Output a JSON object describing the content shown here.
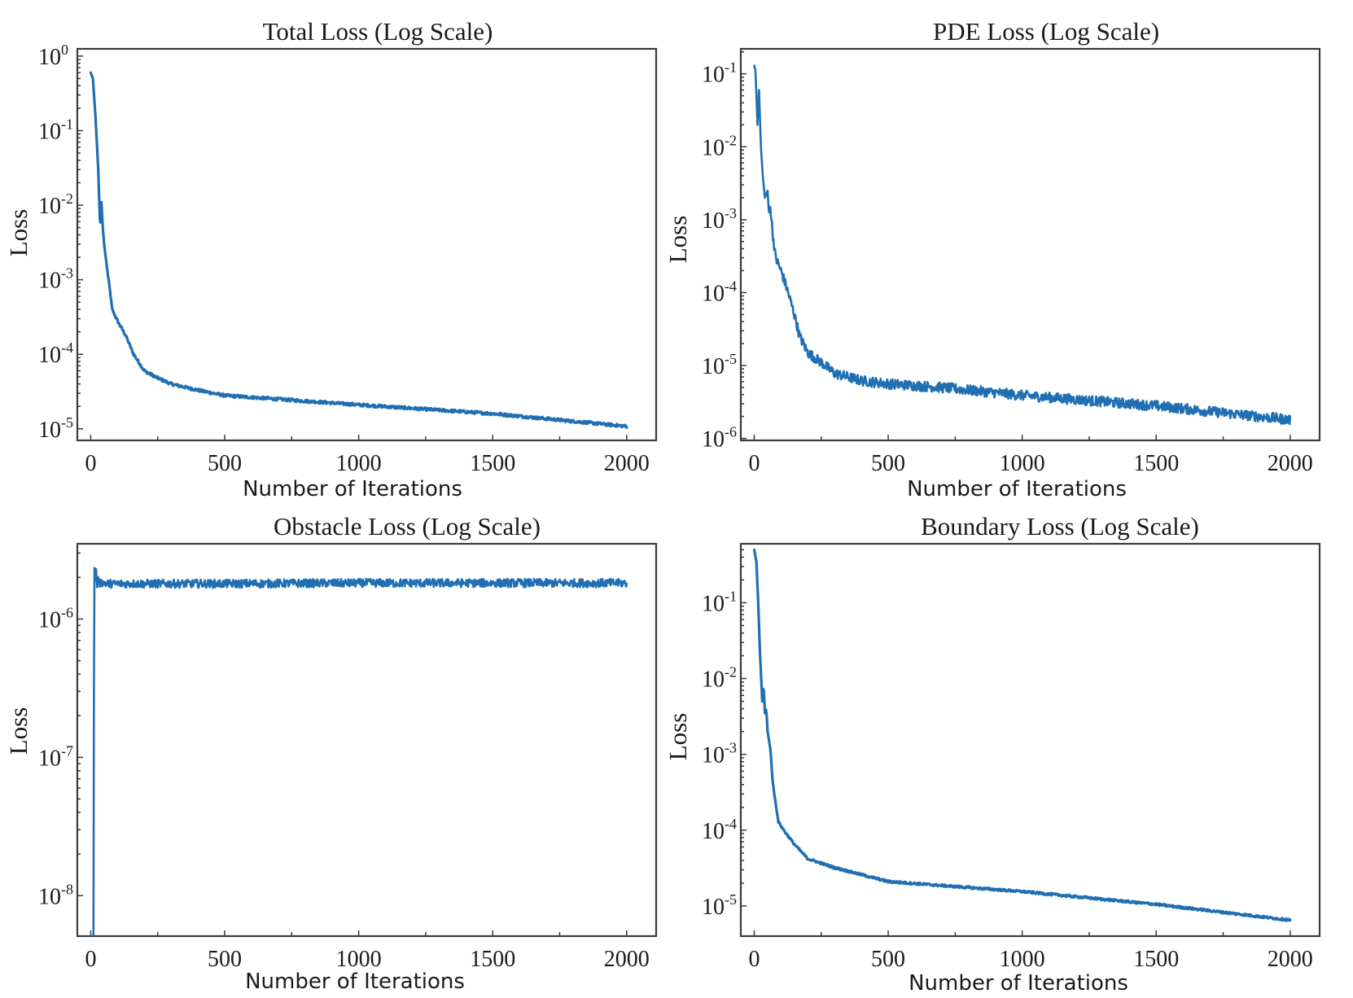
{
  "colors": {
    "series": "#1f6fb2",
    "axis": "#3a3a3a",
    "text": "#1a1a1a"
  },
  "chart_data": [
    {
      "id": "total",
      "type": "line",
      "yscale": "log",
      "title": "Total Loss (Log Scale)",
      "xlabel": "Number of Iterations",
      "ylabel": "Loss",
      "xlim": [
        -50,
        2110
      ],
      "ylim": [
        7e-06,
        1.25
      ],
      "xticks": [
        0,
        500,
        1000,
        1500,
        2000
      ],
      "yticks": [
        1,
        0.1,
        0.01,
        0.001,
        0.0001,
        1e-05
      ],
      "ytick_labels": [
        {
          "base": "10",
          "exp": "0"
        },
        {
          "base": "10",
          "exp": "-1"
        },
        {
          "base": "10",
          "exp": "-2"
        },
        {
          "base": "10",
          "exp": "-3"
        },
        {
          "base": "10",
          "exp": "-4"
        },
        {
          "base": "10",
          "exp": "-5"
        }
      ],
      "noise": 0.02,
      "series": [
        {
          "name": "Total Loss",
          "x": [
            0,
            8,
            18,
            28,
            35,
            40,
            45,
            50,
            60,
            70,
            80,
            100,
            130,
            160,
            200,
            250,
            300,
            400,
            500,
            700,
            1000,
            1500,
            2000
          ],
          "y": [
            0.6,
            0.5,
            0.15,
            0.03,
            0.005,
            0.011,
            0.005,
            0.003,
            0.0015,
            0.0008,
            0.0004,
            0.00028,
            0.00018,
            0.0001,
            6e-05,
            4.8e-05,
            4e-05,
            3.3e-05,
            2.8e-05,
            2.5e-05,
            2.1e-05,
            1.6e-05,
            1.08e-05
          ]
        }
      ]
    },
    {
      "id": "pde",
      "type": "line",
      "yscale": "log",
      "title": "PDE Loss (Log Scale)",
      "xlabel": "Number of Iterations",
      "ylabel": "Loss",
      "xlim": [
        -50,
        2110
      ],
      "ylim": [
        9.4e-07,
        0.22
      ],
      "xticks": [
        0,
        500,
        1000,
        1500,
        2000
      ],
      "yticks": [
        0.1,
        0.01,
        0.001,
        0.0001,
        1e-05,
        1e-06
      ],
      "ytick_labels": [
        {
          "base": "10",
          "exp": "-1"
        },
        {
          "base": "10",
          "exp": "-2"
        },
        {
          "base": "10",
          "exp": "-3"
        },
        {
          "base": "10",
          "exp": "-4"
        },
        {
          "base": "10",
          "exp": "-5"
        },
        {
          "base": "10",
          "exp": "-6"
        }
      ],
      "noise": 0.07,
      "series": [
        {
          "name": "PDE Loss",
          "x": [
            0,
            5,
            12,
            18,
            25,
            32,
            40,
            50,
            55,
            60,
            70,
            80,
            100,
            120,
            150,
            170,
            200,
            250,
            300,
            400,
            500,
            700,
            1000,
            1500,
            2000
          ],
          "y": [
            0.13,
            0.11,
            0.02,
            0.06,
            0.01,
            0.004,
            0.002,
            0.0025,
            0.0012,
            0.0015,
            0.0006,
            0.0003,
            0.0002,
            0.00012,
            5e-05,
            2.5e-05,
            1.5e-05,
            1.1e-05,
            7.8e-06,
            6.2e-06,
            5.6e-06,
            5e-06,
            3.9e-06,
            2.8e-06,
            1.8e-06
          ]
        }
      ]
    },
    {
      "id": "obstacle",
      "type": "line",
      "yscale": "log",
      "title": "Obstacle Loss (Log Scale)",
      "xlabel": "Number of Iterations",
      "ylabel": "Loss",
      "xlim": [
        -50,
        2110
      ],
      "ylim": [
        5.1e-09,
        3.5e-06
      ],
      "xticks": [
        0,
        500,
        1000,
        1500,
        2000
      ],
      "yticks": [
        1e-06,
        1e-07,
        1e-08
      ],
      "ytick_labels": [
        {
          "base": "10",
          "exp": "-6"
        },
        {
          "base": "10",
          "exp": "-7"
        },
        {
          "base": "10",
          "exp": "-8"
        }
      ],
      "noise": 0.03,
      "noise_from_x": 30,
      "series": [
        {
          "name": "Obstacle Loss",
          "x": [
            10,
            13,
            16,
            20,
            24,
            28,
            32,
            40,
            60,
            100,
            500,
            1000,
            1500,
            2000
          ],
          "y": [
            5.2e-09,
            2.6e-06,
            1.9e-06,
            2.3e-06,
            1.7e-06,
            2e-06,
            1.8e-06,
            1.85e-06,
            1.8e-06,
            1.8e-06,
            1.8e-06,
            1.82e-06,
            1.82e-06,
            1.82e-06
          ]
        }
      ]
    },
    {
      "id": "boundary",
      "type": "line",
      "yscale": "log",
      "title": "Boundary Loss (Log Scale)",
      "xlabel": "Number of Iterations",
      "ylabel": "Loss",
      "xlim": [
        -50,
        2110
      ],
      "ylim": [
        4e-06,
        0.6
      ],
      "xticks": [
        0,
        500,
        1000,
        1500,
        2000
      ],
      "yticks": [
        0.1,
        0.01,
        0.001,
        0.0001,
        1e-05
      ],
      "ytick_labels": [
        {
          "base": "10",
          "exp": "-1"
        },
        {
          "base": "10",
          "exp": "-2"
        },
        {
          "base": "10",
          "exp": "-3"
        },
        {
          "base": "10",
          "exp": "-4"
        },
        {
          "base": "10",
          "exp": "-5"
        }
      ],
      "noise": 0.015,
      "series": [
        {
          "name": "Boundary Loss",
          "x": [
            0,
            8,
            15,
            22,
            30,
            35,
            40,
            45,
            50,
            60,
            70,
            90,
            110,
            150,
            200,
            300,
            500,
            1000,
            1500,
            2000
          ],
          "y": [
            0.5,
            0.35,
            0.1,
            0.02,
            0.005,
            0.008,
            0.0035,
            0.004,
            0.002,
            0.0012,
            0.0004,
            0.00013,
            0.0001,
            6.5e-05,
            4.2e-05,
            3.2e-05,
            2.1e-05,
            1.55e-05,
            1.05e-05,
            6.5e-06
          ]
        }
      ]
    }
  ]
}
